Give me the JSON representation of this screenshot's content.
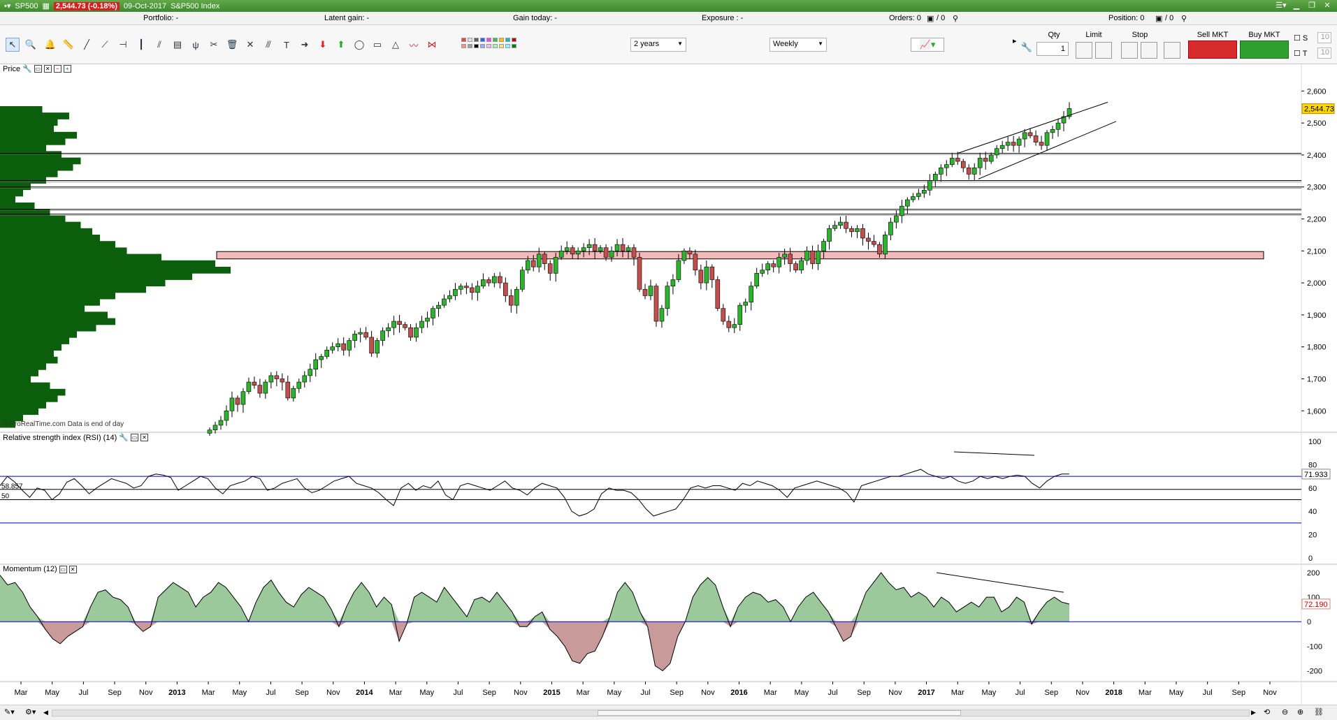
{
  "titlebar": {
    "symbol": "SP500",
    "price_change": "2,544.73 (-0.18%)",
    "date": "09-Oct-2017",
    "instrument": "S&P500 Index"
  },
  "infobar": {
    "portfolio": "Portfolio:  -",
    "latent_gain": "Latent gain:  -",
    "gain_today": "Gain today:  -",
    "exposure": "Exposure :  -",
    "orders": "Orders:  0",
    "orders_sep": "/ 0",
    "position": "Position:  0",
    "position_sep": "/ 0"
  },
  "toolbar": {
    "period_select": "2 years",
    "interval_select": "Weekly"
  },
  "order_panel": {
    "qty_label": "Qty",
    "qty_value": "1",
    "limit_label": "Limit",
    "stop_label": "Stop",
    "sell_label": "Sell MKT",
    "buy_label": "Buy MKT",
    "s_label": "S",
    "t_label": "T",
    "s_value": "10",
    "t_value": "10"
  },
  "panels": {
    "price_title": "Price",
    "rsi_title": "Relative strength index (RSI) (14)",
    "momentum_title": "Momentum (12)",
    "copyright": "© ProRealTime.com  Data is end of day"
  },
  "colors": {
    "up": "#2db32d",
    "down": "#c0504d",
    "volume_profile": "#0b5e0b",
    "zone_fill": "#f4b9b9",
    "rsi_band": "#0000c8",
    "price_badge": "#ffd700"
  },
  "chart_data": [
    {
      "type": "candlestick",
      "title": "Price",
      "y_ticks": [
        "1,600",
        "1,700",
        "1,800",
        "1,900",
        "2,000",
        "2,100",
        "2,200",
        "2,300",
        "2,400",
        "2,500",
        "2,600"
      ],
      "ylim": [
        1570,
        2640
      ],
      "last_price_label": "2,544.73",
      "x_ticks": [
        "Mar",
        "May",
        "Jul",
        "Sep",
        "Nov",
        "2013",
        "Mar",
        "May",
        "Jul",
        "Sep",
        "Nov",
        "2014",
        "Mar",
        "May",
        "Jul",
        "Sep",
        "Nov",
        "2015",
        "Mar",
        "May",
        "Jul",
        "Sep",
        "Nov",
        "2016",
        "Mar",
        "May",
        "Jul",
        "Sep",
        "Nov",
        "2017",
        "Mar",
        "May",
        "Jul",
        "Sep",
        "Nov",
        "2018",
        "Mar",
        "May",
        "Jul",
        "Sep",
        "Nov"
      ],
      "horizontal_levels": [
        2405,
        2320,
        2300,
        2230,
        2215
      ],
      "zone": [
        2075,
        2098
      ],
      "series": [
        {
          "name": "close",
          "values": [
            1540,
            1555,
            1570,
            1600,
            1640,
            1620,
            1660,
            1690,
            1680,
            1655,
            1690,
            1710,
            1700,
            1690,
            1640,
            1670,
            1690,
            1710,
            1730,
            1760,
            1770,
            1790,
            1800,
            1810,
            1790,
            1820,
            1840,
            1845,
            1830,
            1780,
            1820,
            1850,
            1860,
            1880,
            1870,
            1860,
            1830,
            1860,
            1880,
            1890,
            1920,
            1930,
            1950,
            1960,
            1980,
            1990,
            1985,
            1970,
            1990,
            2010,
            2000,
            2020,
            2000,
            1960,
            1930,
            1980,
            2040,
            2070,
            2050,
            2090,
            2060,
            2030,
            2080,
            2100,
            2110,
            2090,
            2100,
            2110,
            2120,
            2100,
            2110,
            2080,
            2100,
            2120,
            2100,
            2110,
            2080,
            1980,
            1960,
            1990,
            1880,
            1920,
            1990,
            2010,
            2070,
            2100,
            2090,
            2040,
            2000,
            2050,
            2010,
            1920,
            1880,
            1860,
            1870,
            1930,
            1940,
            1990,
            2030,
            2040,
            2060,
            2050,
            2080,
            2090,
            2060,
            2040,
            2070,
            2100,
            2060,
            2100,
            2130,
            2170,
            2180,
            2190,
            2170,
            2160,
            2170,
            2140,
            2130,
            2120,
            2090,
            2150,
            2190,
            2210,
            2240,
            2260,
            2270,
            2280,
            2290,
            2320,
            2340,
            2360,
            2370,
            2390,
            2380,
            2360,
            2340,
            2360,
            2390,
            2380,
            2400,
            2420,
            2430,
            2440,
            2430,
            2450,
            2470,
            2460,
            2440,
            2430,
            2470,
            2480,
            2500,
            2520,
            2545
          ]
        }
      ]
    },
    {
      "type": "line",
      "title": "Relative strength index (RSI) (14)",
      "y_ticks": [
        "0",
        "20",
        "40",
        "60",
        "80",
        "100"
      ],
      "ylim": [
        0,
        100
      ],
      "levels": [
        70,
        58.857,
        50,
        30
      ],
      "level_labels": [
        "58.857",
        "50"
      ],
      "last_value_label": "71.933",
      "series": [
        {
          "name": "RSI",
          "values": [
            62,
            70,
            65,
            58,
            52,
            60,
            58,
            50,
            55,
            65,
            68,
            62,
            55,
            60,
            64,
            68,
            66,
            64,
            60,
            62,
            70,
            72,
            71,
            69,
            58,
            62,
            66,
            70,
            68,
            60,
            55,
            62,
            64,
            66,
            70,
            68,
            58,
            60,
            64,
            66,
            68,
            60,
            56,
            58,
            62,
            66,
            68,
            70,
            64,
            62,
            60,
            56,
            50,
            45,
            60,
            64,
            58,
            62,
            60,
            66,
            54,
            50,
            62,
            64,
            62,
            60,
            58,
            62,
            66,
            60,
            58,
            54,
            60,
            64,
            62,
            60,
            52,
            40,
            36,
            38,
            42,
            55,
            60,
            58,
            58,
            56,
            50,
            42,
            36,
            38,
            40,
            42,
            50,
            60,
            62,
            60,
            62,
            62,
            60,
            58,
            64,
            62,
            66,
            64,
            62,
            58,
            52,
            60,
            62,
            64,
            66,
            64,
            62,
            60,
            56,
            48,
            62,
            64,
            66,
            68,
            70,
            70,
            72,
            74,
            76,
            72,
            70,
            68,
            70,
            66,
            64,
            66,
            70,
            68,
            70,
            68,
            70,
            71,
            70,
            64,
            60,
            66,
            70,
            72,
            72
          ]
        }
      ]
    },
    {
      "type": "area",
      "title": "Momentum (12)",
      "y_ticks": [
        "-200",
        "-100",
        "0",
        "100",
        "200"
      ],
      "ylim": [
        -230,
        220
      ],
      "last_value_label": "72.190",
      "series": [
        {
          "name": "Momentum",
          "values": [
            190,
            150,
            160,
            120,
            60,
            20,
            -30,
            -70,
            -90,
            -60,
            -40,
            -20,
            60,
            120,
            130,
            100,
            90,
            60,
            -10,
            -40,
            -20,
            100,
            130,
            160,
            140,
            120,
            60,
            100,
            120,
            160,
            140,
            100,
            60,
            0,
            80,
            140,
            170,
            120,
            80,
            60,
            110,
            140,
            120,
            100,
            50,
            -20,
            60,
            120,
            160,
            120,
            60,
            100,
            70,
            -80,
            -10,
            100,
            120,
            100,
            80,
            140,
            100,
            60,
            20,
            90,
            100,
            80,
            120,
            80,
            40,
            -20,
            -20,
            20,
            40,
            -30,
            -60,
            -100,
            -160,
            -170,
            -130,
            -120,
            -60,
            20,
            120,
            160,
            120,
            40,
            -20,
            -180,
            -200,
            -170,
            -60,
            0,
            100,
            150,
            180,
            150,
            60,
            -20,
            60,
            100,
            120,
            110,
            80,
            90,
            60,
            0,
            60,
            100,
            120,
            80,
            40,
            -20,
            -80,
            -60,
            40,
            120,
            160,
            200,
            160,
            130,
            140,
            100,
            120,
            100,
            60,
            100,
            80,
            40,
            60,
            80,
            60,
            100,
            100,
            40,
            60,
            100,
            80,
            -10,
            40,
            80,
            100,
            80,
            72
          ]
        }
      ]
    }
  ],
  "statusbar": {
    "left": ""
  }
}
